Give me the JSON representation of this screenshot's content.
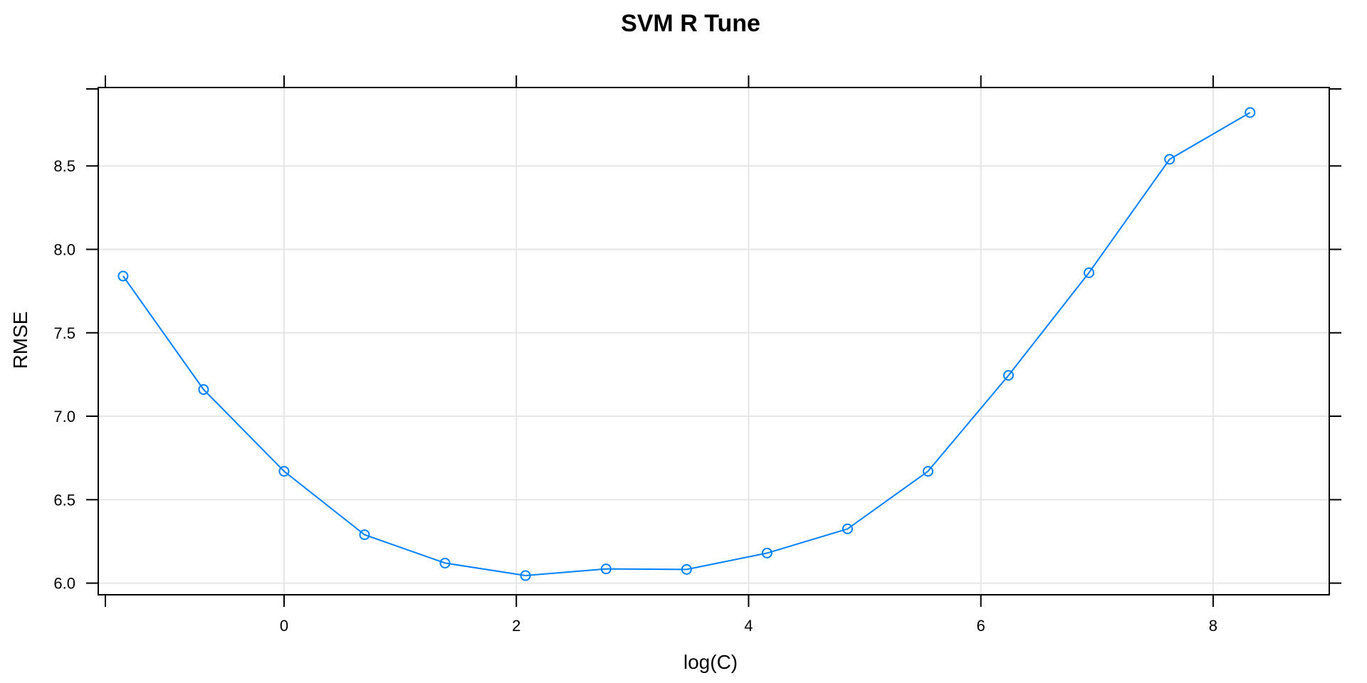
{
  "chart_data": {
    "type": "line",
    "title": "SVM R Tune",
    "xlabel": "log(C)",
    "ylabel": "RMSE",
    "xlim": [
      -1.6,
      9.0
    ],
    "ylim": [
      5.93,
      8.97
    ],
    "xticks": [
      0,
      2,
      4,
      6,
      8
    ],
    "xtick_labels": [
      "0",
      "2",
      "4",
      "6",
      "8"
    ],
    "yticks": [
      6.0,
      6.5,
      7.0,
      7.5,
      8.0,
      8.5
    ],
    "ytick_labels": [
      "6.0",
      "6.5",
      "7.0",
      "7.5",
      "8.0",
      "8.5"
    ],
    "grid": true,
    "marker": "open-circle",
    "line_color": "#0080ff",
    "series": [
      {
        "x": [
          -1.386,
          -0.693,
          0.0,
          0.693,
          1.386,
          2.079,
          2.773,
          3.466,
          4.159,
          4.852,
          5.545,
          6.238,
          6.931,
          7.625,
          8.318
        ],
        "y": [
          7.84,
          7.16,
          6.67,
          6.29,
          6.12,
          6.045,
          6.085,
          6.082,
          6.18,
          6.325,
          6.67,
          7.245,
          7.86,
          8.54,
          8.82
        ]
      }
    ]
  }
}
